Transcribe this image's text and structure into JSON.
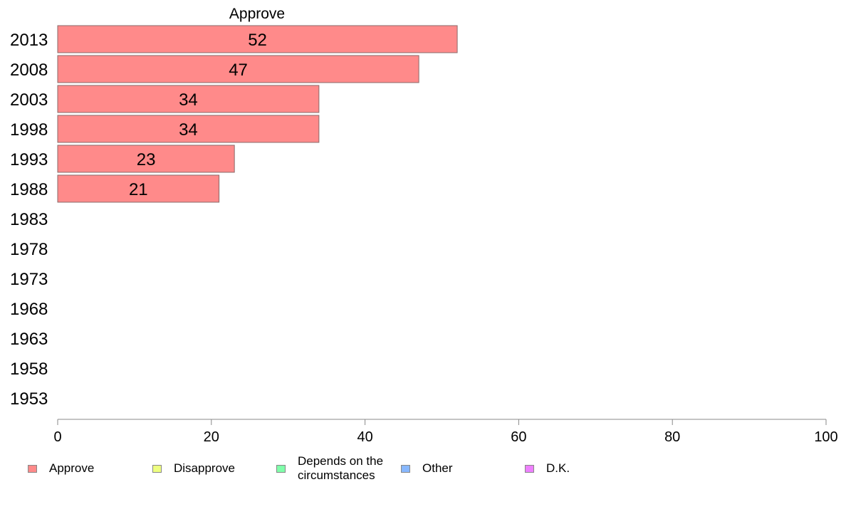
{
  "chart_data": {
    "type": "bar",
    "orientation": "horizontal",
    "title": "Approve",
    "categories": [
      "2013",
      "2008",
      "2003",
      "1998",
      "1993",
      "1988",
      "1983",
      "1978",
      "1973",
      "1968",
      "1963",
      "1958",
      "1953"
    ],
    "series": [
      {
        "name": "Approve",
        "color": "#ff8a8a",
        "values": [
          52,
          47,
          34,
          34,
          23,
          21,
          null,
          null,
          null,
          null,
          null,
          null,
          null
        ]
      }
    ],
    "data_labels": [
      "52",
      "47",
      "34",
      "34",
      "23",
      "21",
      "",
      "",
      "",
      "",
      "",
      "",
      ""
    ],
    "xlim": [
      0,
      100
    ],
    "xticks": [
      "0",
      "20",
      "40",
      "60",
      "80",
      "100"
    ],
    "grid": false,
    "legend_position": "bottom",
    "legend": [
      {
        "label": "Approve",
        "color": "#ff8a8a"
      },
      {
        "label": "Disapprove",
        "color": "#eeff80"
      },
      {
        "label": "Depends on the\ncircumstances",
        "color": "#80ffaa"
      },
      {
        "label": "Other",
        "color": "#88b8ff"
      },
      {
        "label": "D.K.",
        "color": "#ee80ff"
      }
    ]
  }
}
